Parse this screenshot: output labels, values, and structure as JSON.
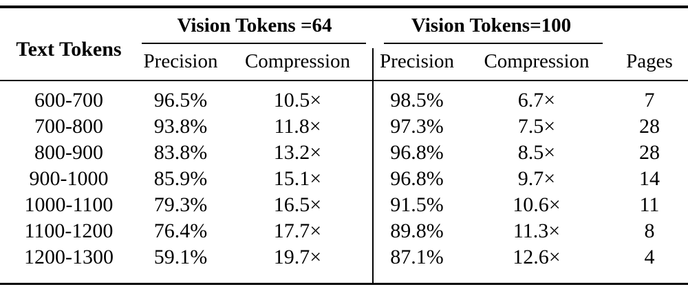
{
  "table": {
    "corner_header": "Text Tokens",
    "group1": {
      "label": "Vision Tokens =64",
      "precision": "Precision",
      "compression": "Compression"
    },
    "group2": {
      "label": "Vision Tokens=100",
      "precision": "Precision",
      "compression": "Compression"
    },
    "pages_header": "Pages",
    "rows": [
      [
        "600-700",
        "96.5%",
        "10.5×",
        "98.5%",
        "6.7×",
        "7"
      ],
      [
        "700-800",
        "93.8%",
        "11.8×",
        "97.3%",
        "7.5×",
        "28"
      ],
      [
        "800-900",
        "83.8%",
        "13.2×",
        "96.8%",
        "8.5×",
        "28"
      ],
      [
        "900-1000",
        "85.9%",
        "15.1×",
        "96.8%",
        "9.7×",
        "14"
      ],
      [
        "1000-1100",
        "79.3%",
        "16.5×",
        "91.5%",
        "10.6×",
        "11"
      ],
      [
        "1100-1200",
        "76.4%",
        "17.7×",
        "89.8%",
        "11.3×",
        "8"
      ],
      [
        "1200-1300",
        "59.1%",
        "19.7×",
        "87.1%",
        "12.6×",
        "4"
      ]
    ]
  },
  "colors": {
    "text": "#000000",
    "background": "#ffffff",
    "rule": "#000000"
  },
  "chart_data": {
    "type": "table",
    "title": "",
    "column_groups": [
      "",
      "Vision Tokens =64",
      "Vision Tokens=100",
      ""
    ],
    "columns": [
      "Text Tokens",
      "Precision (VT=64)",
      "Compression (VT=64)",
      "Precision (VT=100)",
      "Compression (VT=100)",
      "Pages"
    ],
    "rows": [
      [
        "600-700",
        "96.5%",
        "10.5×",
        "98.5%",
        "6.7×",
        7
      ],
      [
        "700-800",
        "93.8%",
        "11.8×",
        "97.3%",
        "7.5×",
        28
      ],
      [
        "800-900",
        "83.8%",
        "13.2×",
        "96.8%",
        "8.5×",
        28
      ],
      [
        "900-1000",
        "85.9%",
        "15.1×",
        "96.8%",
        "9.7×",
        14
      ],
      [
        "1000-1100",
        "79.3%",
        "16.5×",
        "91.5%",
        "10.6×",
        11
      ],
      [
        "1100-1200",
        "76.4%",
        "17.7×",
        "89.8%",
        "11.3×",
        8
      ],
      [
        "1200-1300",
        "59.1%",
        "19.7×",
        "87.1%",
        "12.6×",
        4
      ]
    ]
  }
}
